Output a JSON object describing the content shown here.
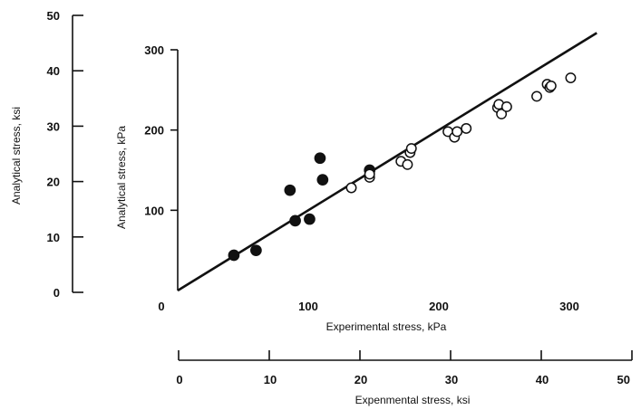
{
  "chart_data": {
    "type": "scatter",
    "title": "",
    "grid": false,
    "legend": "none",
    "colors": {
      "ink": "#111111",
      "background": "#ffffff"
    },
    "primary": {
      "xlabel": "Experimental stress, kPa",
      "ylabel": "Analytical stress, kPa",
      "xlim": [
        0,
        300
      ],
      "ylim": [
        0,
        300
      ],
      "x_ticks": [
        "0",
        "100",
        "200",
        "300"
      ],
      "y_ticks": [
        "100",
        "200",
        "300"
      ]
    },
    "secondary": {
      "xlabel": "Expenmental stress, ksi",
      "ylabel": "Analytical stress, ksi",
      "xlim": [
        0,
        50
      ],
      "ylim": [
        0,
        50
      ],
      "x_ticks": [
        "0",
        "10",
        "20",
        "30",
        "40",
        "50"
      ],
      "y_ticks": [
        "0",
        "10",
        "20",
        "30",
        "40",
        "50"
      ]
    },
    "reference_line": {
      "from": [
        0,
        0
      ],
      "to": [
        300,
        300
      ]
    },
    "series": [
      {
        "marker": "filled-circle",
        "points": [
          [
            43,
            44
          ],
          [
            60,
            50
          ],
          [
            86,
            125
          ],
          [
            90,
            87
          ],
          [
            101,
            89
          ],
          [
            109,
            165
          ],
          [
            111,
            138
          ],
          [
            147,
            150
          ]
        ]
      },
      {
        "marker": "open-circle",
        "points": [
          [
            133,
            128
          ],
          [
            147,
            141
          ],
          [
            147,
            145
          ],
          [
            171,
            161
          ],
          [
            176,
            157
          ],
          [
            178,
            172
          ],
          [
            179,
            177
          ],
          [
            207,
            198
          ],
          [
            212,
            191
          ],
          [
            214,
            198
          ],
          [
            221,
            202
          ],
          [
            245,
            228
          ],
          [
            246,
            232
          ],
          [
            248,
            220
          ],
          [
            252,
            229
          ],
          [
            275,
            242
          ],
          [
            283,
            257
          ],
          [
            285,
            253
          ],
          [
            286,
            255
          ],
          [
            301,
            265
          ]
        ]
      }
    ]
  }
}
